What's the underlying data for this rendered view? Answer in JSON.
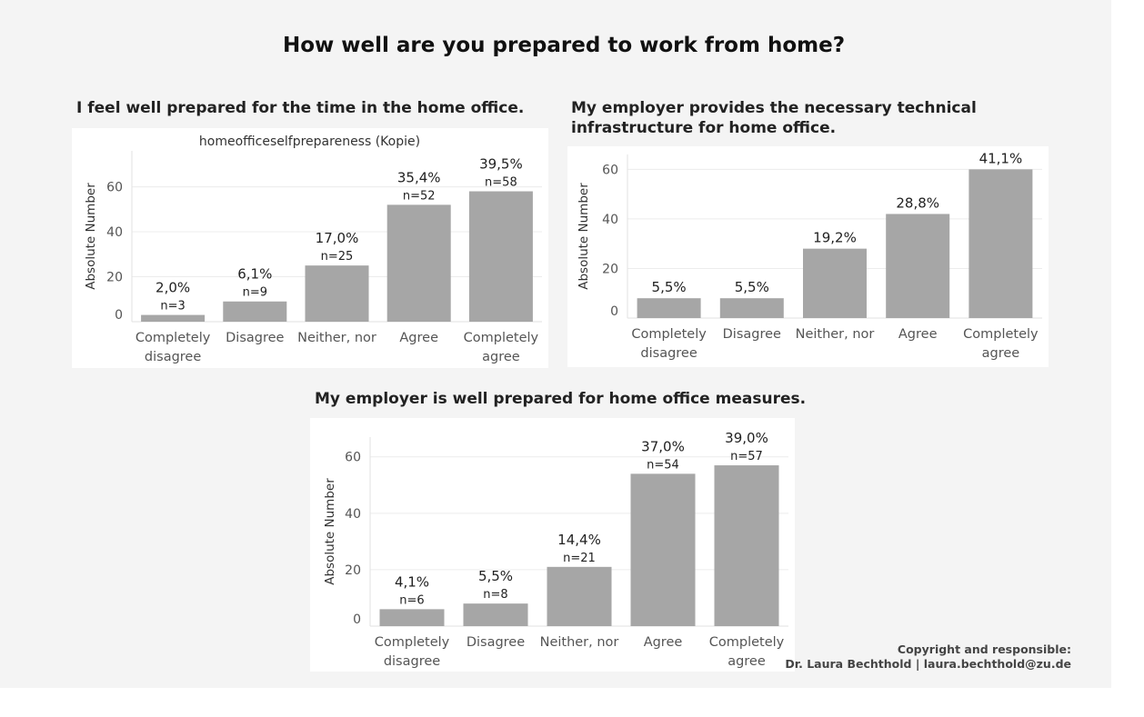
{
  "dashboard": {
    "title": "How well are you prepared to work from home?",
    "footer": {
      "line1": "Copyright and responsible:",
      "line2": "Dr. Laura Bechthold | laura.bechthold@zu.de"
    }
  },
  "colors": {
    "bar": "#a6a6a6",
    "grid": "#ececec",
    "axis_text": "#555555",
    "label_text": "#222222"
  },
  "chart_data": [
    {
      "type": "bar",
      "panel_title": "I feel well prepared for the time in the home office.",
      "title": "homeofficeselfprepareness (Kopie)",
      "xlabel": "",
      "ylabel": "Absolute Number",
      "categories": [
        "Completely disagree",
        "Disagree",
        "Neither, nor",
        "Agree",
        "Completely agree"
      ],
      "category_lines": [
        [
          "Completely",
          "disagree"
        ],
        [
          "Disagree"
        ],
        [
          "Neither, nor"
        ],
        [
          "Agree"
        ],
        [
          "Completely",
          "agree"
        ]
      ],
      "values": [
        3,
        9,
        25,
        52,
        58
      ],
      "percent_labels": [
        "2,0%",
        "6,1%",
        "17,0%",
        "35,4%",
        "39,5%"
      ],
      "count_labels": [
        "n=3",
        "n=9",
        "n=25",
        "n=52",
        "n=58"
      ],
      "yticks": [
        0,
        20,
        40,
        60
      ],
      "ylim": [
        0,
        76
      ],
      "grid": true
    },
    {
      "type": "bar",
      "panel_title": "My employer provides the necessary technical infrastructure for home office.",
      "panel_title_lines": [
        "My employer provides the necessary technical",
        "infrastructure for home office."
      ],
      "title": "",
      "xlabel": "",
      "ylabel": "Absolute Number",
      "categories": [
        "Completely disagree",
        "Disagree",
        "Neither, nor",
        "Agree",
        "Completely agree"
      ],
      "category_lines": [
        [
          "Completely",
          "disagree"
        ],
        [
          "Disagree"
        ],
        [
          "Neither, nor"
        ],
        [
          "Agree"
        ],
        [
          "Completely",
          "agree"
        ]
      ],
      "values": [
        8,
        8,
        28,
        42,
        60
      ],
      "percent_labels": [
        "5,5%",
        "5,5%",
        "19,2%",
        "28,8%",
        "41,1%"
      ],
      "count_labels": [],
      "yticks": [
        0,
        20,
        40,
        60
      ],
      "ylim": [
        0,
        66
      ],
      "grid": true
    },
    {
      "type": "bar",
      "panel_title": "My employer is well prepared for home office measures.",
      "title": "",
      "xlabel": "",
      "ylabel": "Absolute Number",
      "categories": [
        "Completely disagree",
        "Disagree",
        "Neither, nor",
        "Agree",
        "Completely agree"
      ],
      "category_lines": [
        [
          "Completely",
          "disagree"
        ],
        [
          "Disagree"
        ],
        [
          "Neither, nor"
        ],
        [
          "Agree"
        ],
        [
          "Completely",
          "agree"
        ]
      ],
      "values": [
        6,
        8,
        21,
        54,
        57
      ],
      "percent_labels": [
        "4,1%",
        "5,5%",
        "14,4%",
        "37,0%",
        "39,0%"
      ],
      "count_labels": [
        "n=6",
        "n=8",
        "n=21",
        "n=54",
        "n=57"
      ],
      "yticks": [
        0,
        20,
        40,
        60
      ],
      "ylim": [
        0,
        67
      ],
      "grid": true
    }
  ]
}
